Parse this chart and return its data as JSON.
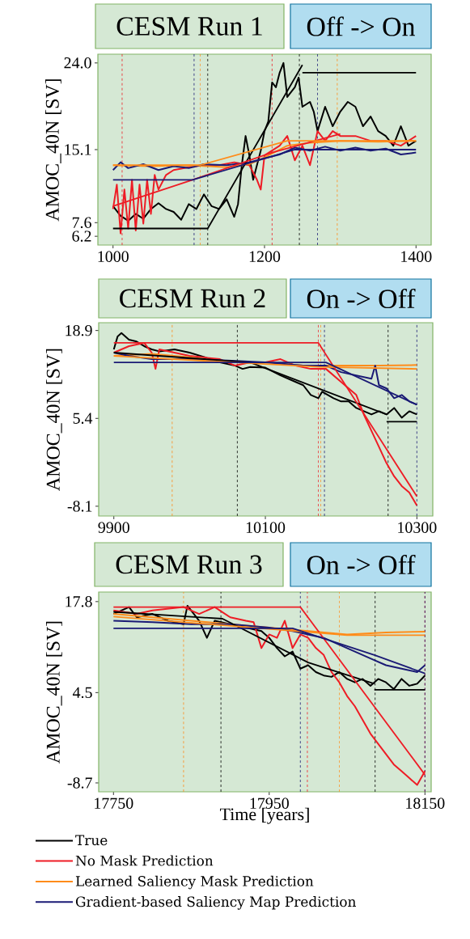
{
  "chart_data": [
    {
      "type": "line",
      "title": "CESM Run 1",
      "subtitle": "Off -> On",
      "ylabel": "AMOC_40N [SV]",
      "xlim": [
        980,
        1420
      ],
      "ylim": [
        5.3,
        24.9
      ],
      "xticks": [
        1000,
        1200,
        1400
      ],
      "yticks": [
        6.2,
        7.6,
        15.1,
        {
          "value": 24.0,
          "label": "24.0"
        }
      ],
      "grid": false,
      "marker": "none",
      "line_style": "solid",
      "series": [
        {
          "color": "#000000",
          "x": [
            1000,
            1010,
            1020,
            1030,
            1040,
            1050,
            1060,
            1070,
            1080,
            1090,
            1100,
            1110,
            1120,
            1130,
            1140,
            1150,
            1160,
            1165,
            1170,
            1175,
            1180,
            1185,
            1190,
            1195,
            1200,
            1205,
            1210,
            1215,
            1220,
            1225,
            1230,
            1240,
            1245,
            1250,
            1260,
            1265,
            1270,
            1280,
            1290,
            1300,
            1310,
            1320,
            1330,
            1340,
            1350,
            1360,
            1370,
            1380,
            1390,
            1400
          ],
          "values": [
            9.3,
            8.3,
            7.8,
            8.5,
            8.0,
            9.0,
            9.6,
            9.0,
            8.7,
            7.9,
            9.5,
            9.0,
            10.5,
            9.3,
            9.0,
            10.0,
            8.2,
            9.5,
            13.5,
            16.5,
            14.5,
            12.0,
            13.5,
            15.0,
            17.0,
            18.0,
            22.0,
            21.5,
            23.0,
            24.0,
            20.5,
            21.5,
            22.5,
            19.5,
            20.0,
            19.0,
            17.0,
            19.5,
            17.5,
            19.0,
            20.0,
            19.5,
            17.5,
            18.5,
            17.0,
            16.5,
            15.5,
            17.5,
            15.5,
            16.0
          ]
        },
        {
          "color": "#ee1c25",
          "x": [
            1000,
            1005,
            1010,
            1015,
            1020,
            1025,
            1030,
            1035,
            1040,
            1045,
            1050,
            1055,
            1060,
            1070,
            1080,
            1100,
            1120,
            1140,
            1160,
            1180,
            1190,
            1195,
            1200,
            1220,
            1230,
            1240,
            1250,
            1260,
            1270,
            1280,
            1290,
            1300,
            1320,
            1340,
            1360,
            1380,
            1400
          ],
          "values": [
            9.0,
            11.5,
            6.5,
            11.0,
            7.0,
            12.0,
            6.8,
            11.5,
            7.5,
            12.0,
            8.5,
            12.5,
            11.0,
            12.5,
            13.0,
            13.3,
            13.5,
            13.5,
            13.8,
            13.5,
            12.0,
            11.0,
            14.5,
            15.5,
            16.5,
            14.0,
            15.5,
            13.5,
            17.0,
            16.0,
            17.0,
            16.5,
            16.5,
            16.0,
            16.0,
            15.5,
            16.5
          ]
        },
        {
          "color": "#ff8c1a",
          "x": [
            1000,
            1050,
            1100,
            1150,
            1180,
            1200,
            1230,
            1260,
            1300,
            1350,
            1400
          ],
          "values": [
            13.5,
            13.4,
            13.5,
            13.3,
            13.6,
            14.3,
            15.5,
            15.8,
            16.0,
            15.9,
            16.0
          ]
        },
        {
          "color": "#1a1a75",
          "x": [
            1000,
            1010,
            1020,
            1040,
            1060,
            1080,
            1100,
            1120,
            1150,
            1180,
            1200,
            1220,
            1240,
            1260,
            1280,
            1300,
            1320,
            1340,
            1360,
            1380,
            1400
          ],
          "values": [
            13.0,
            13.8,
            13.2,
            13.6,
            13.0,
            13.4,
            13.2,
            13.6,
            13.5,
            13.8,
            14.2,
            14.6,
            15.3,
            15.0,
            15.4,
            15.0,
            15.3,
            15.0,
            15.2,
            14.6,
            14.8
          ]
        },
        {
          "color": "#000000",
          "x": [
            1000,
            1125,
            1250
          ],
          "values": [
            7.0,
            7.0,
            23.8
          ]
        },
        {
          "color": "#000000",
          "x": [
            1250,
            1400
          ],
          "values": [
            23.0,
            23.0
          ]
        },
        {
          "color": "#ee1c25",
          "x": [
            1000,
            1105,
            1210,
            1300
          ],
          "values": [
            9.3,
            12.0,
            14.8,
            16.7
          ]
        },
        {
          "color": "#ff8c1a",
          "x": [
            1000,
            1115,
            1230,
            1400
          ],
          "values": [
            13.5,
            13.5,
            16.0,
            16.0
          ]
        },
        {
          "color": "#1a1a75",
          "x": [
            1000,
            1105,
            1240,
            1400
          ],
          "values": [
            12.0,
            12.0,
            15.1,
            15.1
          ]
        }
      ],
      "ref_lines": [
        {
          "axis": "x",
          "value": 1012,
          "color": "#ee1c25",
          "line_style": "dashed"
        },
        {
          "axis": "x",
          "value": 1107,
          "color": "#1a1a75",
          "line_style": "dashed"
        },
        {
          "axis": "x",
          "value": 1115,
          "color": "#ff8c1a",
          "line_style": "dashed"
        },
        {
          "axis": "x",
          "value": 1125,
          "color": "#000000",
          "line_style": "dashed"
        },
        {
          "axis": "x",
          "value": 1210,
          "color": "#ee1c25",
          "line_style": "dashed"
        },
        {
          "axis": "x",
          "value": 1246,
          "color": "#000000",
          "line_style": "dashed"
        },
        {
          "axis": "x",
          "value": 1270,
          "color": "#1a1a75",
          "line_style": "dashed"
        },
        {
          "axis": "x",
          "value": 1296,
          "color": "#ff8c1a",
          "line_style": "dashed"
        }
      ]
    },
    {
      "type": "line",
      "title": "CESM Run 2",
      "subtitle": "On -> Off",
      "ylabel": "AMOC_40N [SV]",
      "xlim": [
        9880,
        10321
      ],
      "ylim": [
        -9.6,
        20.1
      ],
      "xticks": [
        9900,
        10100,
        10300
      ],
      "yticks": [
        -8.1,
        5.4,
        18.9
      ],
      "grid": false,
      "marker": "none",
      "line_style": "solid",
      "series": [
        {
          "color": "#000000",
          "x": [
            9900,
            9905,
            9910,
            9920,
            9930,
            9940,
            9950,
            9960,
            9980,
            10000,
            10020,
            10040,
            10060,
            10070,
            10080,
            10100,
            10120,
            10140,
            10150,
            10160,
            10170,
            10175,
            10190,
            10200,
            10210,
            10220,
            10230,
            10240,
            10250,
            10260,
            10270,
            10280,
            10290,
            10300
          ],
          "values": [
            16.0,
            18.0,
            18.5,
            17.5,
            17.2,
            16.5,
            16.0,
            15.7,
            16.0,
            15.5,
            14.8,
            14.0,
            13.5,
            13.0,
            13.3,
            13.2,
            12.0,
            11.0,
            10.5,
            9.0,
            8.5,
            9.5,
            8.5,
            8.0,
            8.0,
            7.0,
            6.5,
            6.0,
            6.5,
            6.0,
            7.0,
            5.5,
            6.5,
            6.0
          ]
        },
        {
          "color": "#ee1c25",
          "x": [
            9900,
            9920,
            9940,
            9950,
            9955,
            9960,
            9980,
            10000,
            10040,
            10060,
            10080,
            10100,
            10120,
            10140,
            10160,
            10180,
            10200,
            10220,
            10230,
            10240,
            10250,
            10260,
            10270,
            10280,
            10290,
            10300
          ],
          "values": [
            15.5,
            16.5,
            17.0,
            15.5,
            13.0,
            16.0,
            15.5,
            15.0,
            14.5,
            13.5,
            14.0,
            14.0,
            14.5,
            13.5,
            13.0,
            13.0,
            11.0,
            9.0,
            6.0,
            3.5,
            1.0,
            -1.5,
            -3.5,
            -5.0,
            -6.0,
            -8.0
          ]
        },
        {
          "color": "#ff8c1a",
          "x": [
            9900,
            9950,
            10000,
            10050,
            10100,
            10150,
            10200,
            10250,
            10300
          ],
          "values": [
            15.0,
            15.3,
            14.8,
            14.0,
            14.0,
            13.5,
            13.5,
            13.5,
            13.6
          ]
        },
        {
          "color": "#1a1a75",
          "x": [
            9900,
            9920,
            9950,
            10000,
            10050,
            10100,
            10150,
            10180,
            10200,
            10220,
            10240,
            10245,
            10250,
            10260,
            10270,
            10280,
            10290,
            10300
          ],
          "values": [
            15.5,
            15.0,
            14.5,
            14.5,
            14.3,
            14.0,
            13.5,
            13.5,
            12.5,
            12.0,
            11.5,
            13.5,
            10.5,
            10.0,
            8.5,
            9.0,
            8.0,
            7.5
          ]
        },
        {
          "color": "#000000",
          "x": [
            9900,
            10080,
            10260
          ],
          "values": [
            15.5,
            14.0,
            6.0
          ]
        },
        {
          "color": "#000000",
          "x": [
            10260,
            10300
          ],
          "values": [
            4.9,
            4.9
          ]
        },
        {
          "color": "#ee1c25",
          "x": [
            9900,
            10170,
            10300
          ],
          "values": [
            17.0,
            17.0,
            -6.6
          ]
        },
        {
          "color": "#ff8c1a",
          "x": [
            9900,
            10170,
            10300
          ],
          "values": [
            15.0,
            13.3,
            13.0
          ]
        },
        {
          "color": "#1a1a75",
          "x": [
            9900,
            10180,
            10300
          ],
          "values": [
            14.0,
            14.0,
            7.5
          ]
        }
      ],
      "ref_lines": [
        {
          "axis": "x",
          "value": 9977,
          "color": "#ff8c1a",
          "line_style": "dashed"
        },
        {
          "axis": "x",
          "value": 10063,
          "color": "#000000",
          "line_style": "dashed"
        },
        {
          "axis": "x",
          "value": 10170,
          "color": "#ee1c25",
          "line_style": "dashed"
        },
        {
          "axis": "x",
          "value": 10173,
          "color": "#ff8c1a",
          "line_style": "dashed"
        },
        {
          "axis": "x",
          "value": 10178,
          "color": "#1a1a75",
          "line_style": "dashed"
        },
        {
          "axis": "x",
          "value": 10262,
          "color": "#000000",
          "line_style": "dashed"
        },
        {
          "axis": "x",
          "value": 10300,
          "color": "#1a1a75",
          "line_style": "dashed"
        }
      ]
    },
    {
      "type": "line",
      "title": "CESM Run 3",
      "subtitle": "On -> Off",
      "xlabel": "Time [years]",
      "ylabel": "AMOC_40N [SV]",
      "xlim": [
        17731,
        18158
      ],
      "ylim": [
        -10.0,
        19.2
      ],
      "xticks": [
        17750,
        17950,
        18150
      ],
      "yticks": [
        -8.7,
        4.5,
        17.8
      ],
      "grid": false,
      "marker": "none",
      "line_style": "solid",
      "legend": "bottom",
      "series": [
        {
          "name": "True",
          "color": "#000000",
          "x": [
            17750,
            17760,
            17770,
            17780,
            17800,
            17820,
            17840,
            17845,
            17860,
            17870,
            17880,
            17900,
            17920,
            17940,
            17950,
            17960,
            17970,
            17980,
            17990,
            18000,
            18010,
            18020,
            18030,
            18040,
            18050,
            18060,
            18070,
            18080,
            18090,
            18100,
            18110,
            18120,
            18130,
            18140,
            18150
          ],
          "values": [
            16.0,
            16.5,
            17.0,
            15.5,
            16.0,
            15.0,
            14.5,
            17.2,
            15.0,
            12.5,
            15.0,
            14.5,
            14.0,
            13.5,
            12.5,
            11.0,
            9.8,
            10.5,
            8.0,
            8.5,
            7.5,
            7.0,
            6.8,
            7.5,
            6.5,
            6.0,
            6.5,
            5.5,
            6.5,
            6.0,
            5.0,
            6.5,
            5.5,
            5.8,
            7.0
          ]
        },
        {
          "name": "No Mask Prediction",
          "color": "#ee1c25",
          "x": [
            17750,
            17780,
            17800,
            17840,
            17860,
            17880,
            17900,
            17920,
            17930,
            17940,
            17950,
            17960,
            17970,
            17980,
            17990,
            18000,
            18010,
            18020,
            18030,
            18040,
            18050,
            18060,
            18070,
            18080,
            18090,
            18100,
            18110,
            18120,
            18130,
            18140,
            18150
          ],
          "values": [
            16.5,
            16.0,
            16.5,
            17.0,
            16.0,
            17.0,
            15.5,
            15.0,
            14.8,
            11.0,
            13.0,
            12.5,
            15.0,
            11.0,
            13.0,
            12.5,
            11.0,
            10.0,
            7.5,
            6.0,
            4.0,
            2.5,
            0.5,
            -1.5,
            -3.0,
            -4.5,
            -6.0,
            -7.0,
            -8.0,
            -9.0,
            -7.0
          ]
        },
        {
          "name": "Learned Saliency Mask Prediction",
          "color": "#ff8c1a",
          "x": [
            17750,
            17800,
            17850,
            17900,
            17950,
            18000,
            18050,
            18100,
            18150
          ],
          "values": [
            16.0,
            15.5,
            15.0,
            14.5,
            14.0,
            13.5,
            13.0,
            13.3,
            13.4
          ]
        },
        {
          "name": "Gradient-based Saliency Map Prediction",
          "color": "#1a1a75",
          "x": [
            17750,
            17800,
            17850,
            17900,
            17950,
            17980,
            18000,
            18020,
            18040,
            18060,
            18080,
            18100,
            18120,
            18140,
            18150
          ],
          "values": [
            15.0,
            14.8,
            14.5,
            14.5,
            14.0,
            13.5,
            13.0,
            12.5,
            11.5,
            10.5,
            9.5,
            8.5,
            8.0,
            7.5,
            8.5
          ]
        },
        {
          "color": "#000000",
          "x": [
            17750,
            17890,
            18000,
            18085
          ],
          "values": [
            16.3,
            15.3,
            8.9,
            5.8
          ]
        },
        {
          "color": "#000000",
          "x": [
            18085,
            18150
          ],
          "values": [
            4.9,
            4.9
          ]
        },
        {
          "color": "#ee1c25",
          "x": [
            17750,
            17990,
            18150
          ],
          "values": [
            17.0,
            17.0,
            -7.5
          ]
        },
        {
          "color": "#ff8c1a",
          "x": [
            17750,
            18050,
            18150
          ],
          "values": [
            15.6,
            12.9,
            12.9
          ]
        },
        {
          "color": "#1a1a75",
          "x": [
            17750,
            17980,
            18085,
            18150
          ],
          "values": [
            13.9,
            13.9,
            10.0,
            7.3
          ]
        }
      ],
      "ref_lines": [
        {
          "axis": "x",
          "value": 17840,
          "color": "#ff8c1a",
          "line_style": "dashed"
        },
        {
          "axis": "x",
          "value": 17888,
          "color": "#000000",
          "line_style": "dashed"
        },
        {
          "axis": "x",
          "value": 17990,
          "color": "#1a1a75",
          "line_style": "dashed"
        },
        {
          "axis": "x",
          "value": 17999,
          "color": "#ee1c25",
          "line_style": "dashed"
        },
        {
          "axis": "x",
          "value": 18040,
          "color": "#ff8c1a",
          "line_style": "dashed"
        },
        {
          "axis": "x",
          "value": 18086,
          "color": "#000000",
          "line_style": "dashed"
        },
        {
          "axis": "x",
          "value": 18150,
          "color": "#ee1c25",
          "line_style": "dashed"
        },
        {
          "axis": "x",
          "value": 18150,
          "color": "#1a1a75",
          "line_style": "dashed"
        }
      ]
    }
  ]
}
